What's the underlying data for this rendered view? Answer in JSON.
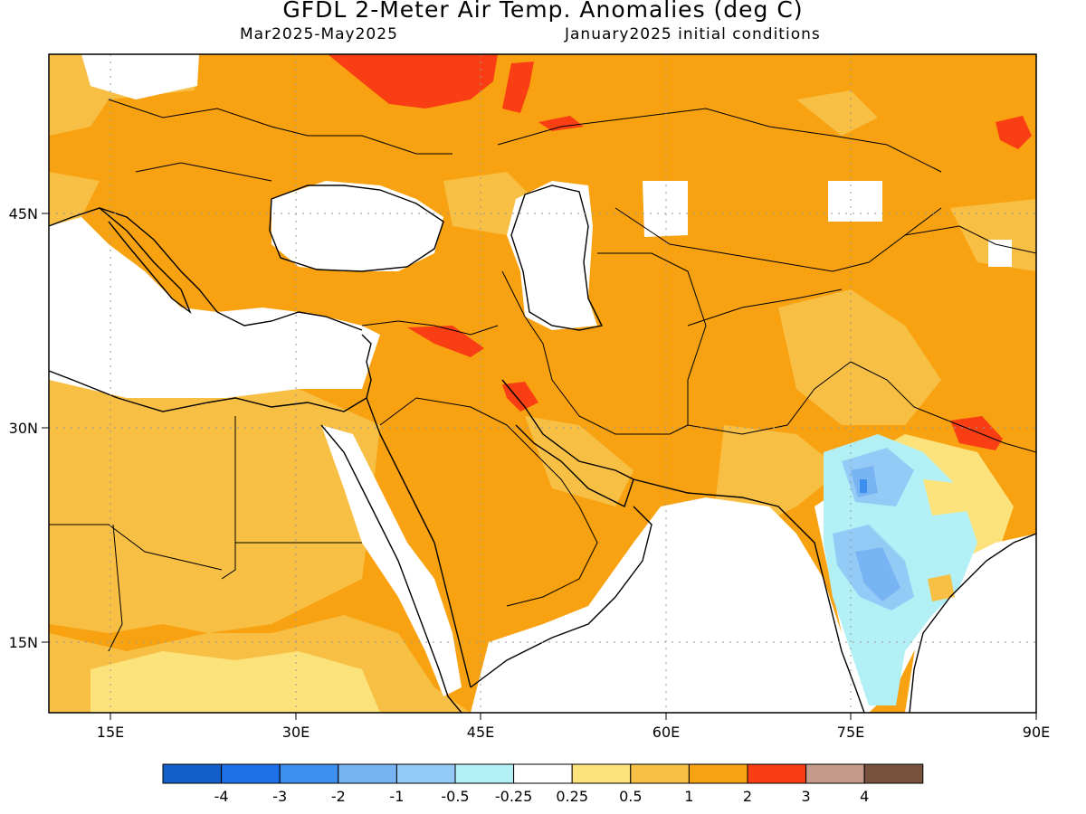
{
  "title": "GFDL 2-Meter Air Temp. Anomalies (deg C)",
  "period": "Mar2025-May2025",
  "init": "January2025 initial conditions",
  "map": {
    "lon_range": [
      10,
      90
    ],
    "lat_range": [
      10,
      55
    ],
    "lon_ticks": [
      "15E",
      "30E",
      "45E",
      "60E",
      "75E",
      "90E"
    ],
    "lat_ticks": [
      "15N",
      "30N",
      "45N"
    ]
  },
  "legend": {
    "colors": [
      "#1560c8",
      "#1f6fe8",
      "#3e8ef0",
      "#78b4f3",
      "#94caf6",
      "#b2f0f6",
      "#ffffff",
      "#fbe27a",
      "#f8bf45",
      "#f8a212",
      "#f83e12",
      "#c49a8a",
      "#77523f"
    ],
    "labels": [
      "-4",
      "-3",
      "-2",
      "-1",
      "-0.5",
      "-0.25",
      "0.25",
      "0.5",
      "1",
      "2",
      "3",
      "4"
    ]
  },
  "colors": {
    "anomaly_1_2": "#f8a212",
    "anomaly_0_5_1": "#f8bf45",
    "anomaly_2_3": "#f83e12",
    "neutral": "#ffffff"
  }
}
